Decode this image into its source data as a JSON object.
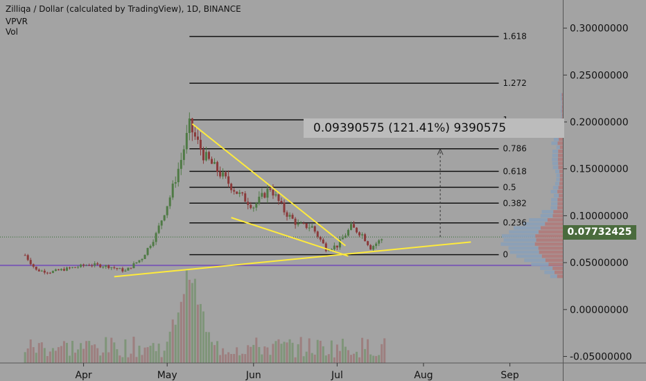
{
  "header": {
    "title": "Zilliqa / Dollar (calculated by TradingView), 1D, BINANCE",
    "indicator_1": "VPVR",
    "indicator_2": "Vol"
  },
  "measure": {
    "label": "0.09390575 (121.41%) 9390575"
  },
  "last_price": "0.07732425",
  "colors": {
    "bg": "#a3a3a3",
    "up": "#4f7a45",
    "down": "#8a3a3a",
    "trendline": "#ffeb3b",
    "support": "#7b5cb3",
    "fib": "#111111",
    "last_price": "#4a6b3d"
  },
  "chart_data": {
    "type": "candlestick",
    "y_ticks": [
      "0.30000000",
      "0.25000000",
      "0.20000000",
      "0.15000000",
      "0.10000000",
      "0.05000000",
      "0.00000000",
      "-0.05000000"
    ],
    "y_tick_values": [
      0.3,
      0.25,
      0.2,
      0.15,
      0.1,
      0.05,
      0.0,
      -0.05
    ],
    "ylim": [
      -0.057,
      0.33
    ],
    "x_ticks": [
      "Apr",
      "May",
      "Jun",
      "Jul",
      "Aug",
      "Sep"
    ],
    "x_tick_dates": [
      "2018-04-01",
      "2018-05-01",
      "2018-06-01",
      "2018-07-01",
      "2018-08-01",
      "2018-09-01"
    ],
    "x_range": [
      "2018-03-02",
      "2018-09-20"
    ],
    "fib_levels": [
      {
        "label": "1.618",
        "price": 0.2911
      },
      {
        "label": "1.272",
        "price": 0.2413
      },
      {
        "label": "1",
        "price": 0.2022
      },
      {
        "label": "0.786",
        "price": 0.1714
      },
      {
        "label": "0.618",
        "price": 0.1473
      },
      {
        "label": "0.5",
        "price": 0.1303
      },
      {
        "label": "0.382",
        "price": 0.1134
      },
      {
        "label": "0.236",
        "price": 0.0924
      },
      {
        "label": "0",
        "price": 0.0585
      }
    ],
    "fib_start": "2018-05-09",
    "fib_end": "2018-08-28",
    "support_line": 0.047,
    "last_price": 0.0773,
    "price_series": [
      {
        "date": "2018-03-11",
        "close": 0.058
      },
      {
        "date": "2018-03-15",
        "close": 0.042
      },
      {
        "date": "2018-03-20",
        "close": 0.04
      },
      {
        "date": "2018-03-27",
        "close": 0.044
      },
      {
        "date": "2018-04-03",
        "close": 0.048
      },
      {
        "date": "2018-04-10",
        "close": 0.046
      },
      {
        "date": "2018-04-16",
        "close": 0.041
      },
      {
        "date": "2018-04-22",
        "close": 0.055
      },
      {
        "date": "2018-04-27",
        "close": 0.08
      },
      {
        "date": "2018-05-02",
        "close": 0.12
      },
      {
        "date": "2018-05-06",
        "close": 0.16
      },
      {
        "date": "2018-05-09",
        "close": 0.196
      },
      {
        "date": "2018-05-14",
        "close": 0.165
      },
      {
        "date": "2018-05-20",
        "close": 0.145
      },
      {
        "date": "2018-05-26",
        "close": 0.125
      },
      {
        "date": "2018-06-01",
        "close": 0.11
      },
      {
        "date": "2018-06-07",
        "close": 0.13
      },
      {
        "date": "2018-06-12",
        "close": 0.105
      },
      {
        "date": "2018-06-17",
        "close": 0.09
      },
      {
        "date": "2018-06-22",
        "close": 0.088
      },
      {
        "date": "2018-06-27",
        "close": 0.065
      },
      {
        "date": "2018-07-01",
        "close": 0.068
      },
      {
        "date": "2018-07-06",
        "close": 0.088
      },
      {
        "date": "2018-07-10",
        "close": 0.08
      },
      {
        "date": "2018-07-13",
        "close": 0.066
      },
      {
        "date": "2018-07-18",
        "close": 0.0773
      }
    ]
  }
}
